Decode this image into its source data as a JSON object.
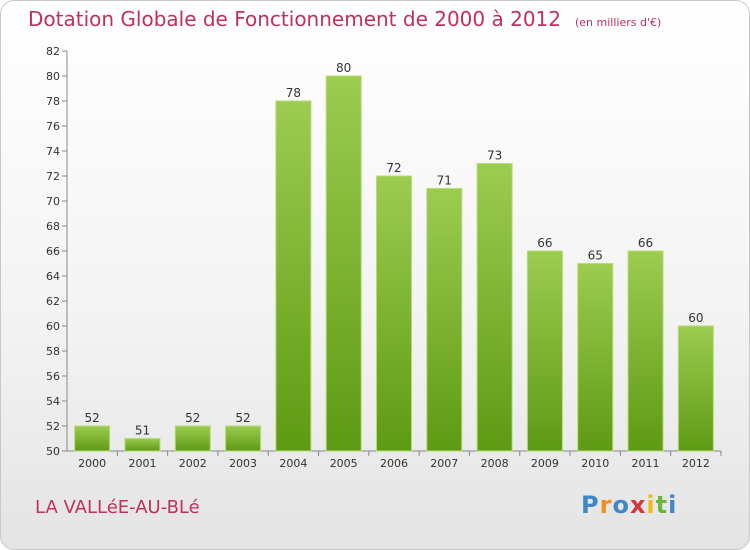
{
  "header": {
    "title": "Dotation Globale de Fonctionnement de 2000 à 2012",
    "unit": "(en milliers d'€)"
  },
  "footer": {
    "commune": "LA VALLéE-AU-BLé",
    "logo_letters": [
      "P",
      "r",
      "o",
      "x",
      "i",
      "t",
      "i"
    ],
    "logo_colors": [
      "#3f87c6",
      "#f28c1c",
      "#3f87c6",
      "#d8353a",
      "#f2b91c",
      "#6bb53a",
      "#3f87c6"
    ]
  },
  "colors": {
    "bar_top": "#9ccc50",
    "bar_bottom": "#5e9a14",
    "title": "#c0305a"
  },
  "chart_data": {
    "type": "bar",
    "categories": [
      "2000",
      "2001",
      "2002",
      "2003",
      "2004",
      "2005",
      "2006",
      "2007",
      "2008",
      "2009",
      "2010",
      "2011",
      "2012"
    ],
    "values": [
      52,
      51,
      52,
      52,
      78,
      80,
      72,
      71,
      73,
      66,
      65,
      66,
      60
    ],
    "title": "Dotation Globale de Fonctionnement de 2000 à 2012",
    "ylim": [
      50,
      82
    ],
    "yticks": [
      50,
      52,
      54,
      56,
      58,
      60,
      62,
      64,
      66,
      68,
      70,
      72,
      74,
      76,
      78,
      80,
      82
    ],
    "grid": false
  }
}
